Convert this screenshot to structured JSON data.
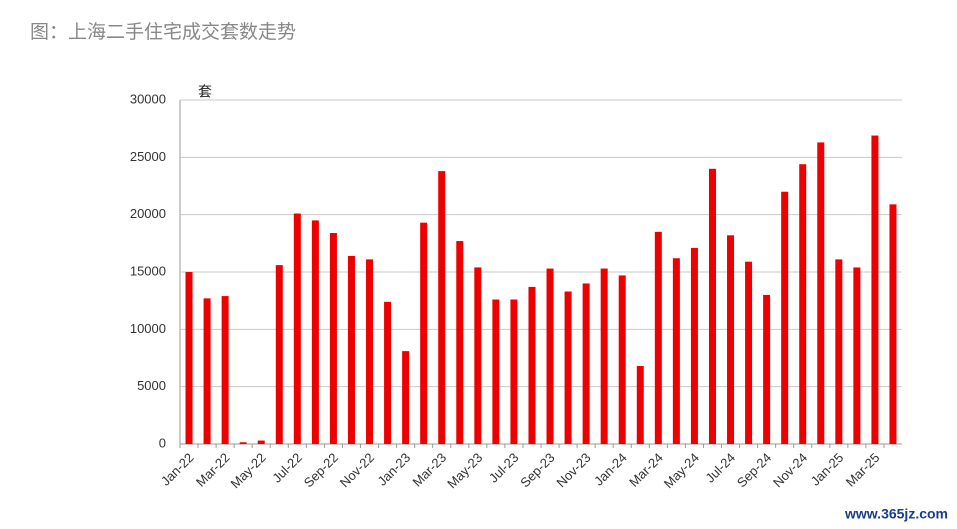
{
  "chart_data": {
    "type": "bar",
    "title": "图：上海二手住宅成交套数走势",
    "y_unit": "套",
    "watermark": "www.365jz.com",
    "categories": [
      "Jan-22",
      null,
      "Mar-22",
      null,
      "May-22",
      null,
      "Jul-22",
      null,
      "Sep-22",
      null,
      "Nov-22",
      null,
      "Jan-23",
      null,
      "Mar-23",
      null,
      "May-23",
      null,
      "Jul-23",
      null,
      "Sep-23",
      null,
      "Nov-23",
      null,
      "Jan-24",
      null,
      "Mar-24",
      null,
      "May-24",
      null,
      "Jul-24",
      null,
      "Sep-24",
      null,
      "Nov-24",
      null,
      "Jan-25",
      null,
      "Mar-25",
      null
    ],
    "values": [
      15000,
      12700,
      12900,
      150,
      300,
      15600,
      20100,
      19500,
      18400,
      16400,
      16100,
      12400,
      8100,
      19300,
      23800,
      17700,
      15400,
      12600,
      12600,
      13700,
      15300,
      13300,
      14000,
      15300,
      14700,
      6800,
      18500,
      16200,
      17100,
      24000,
      18200,
      15900,
      13000,
      22000,
      24400,
      26300,
      16100,
      15400,
      26900,
      20900
    ],
    "color": "#ee0000",
    "ylim": [
      0,
      30000
    ],
    "yticks": [
      0,
      5000,
      10000,
      15000,
      20000,
      25000,
      30000
    ],
    "grid": true
  }
}
